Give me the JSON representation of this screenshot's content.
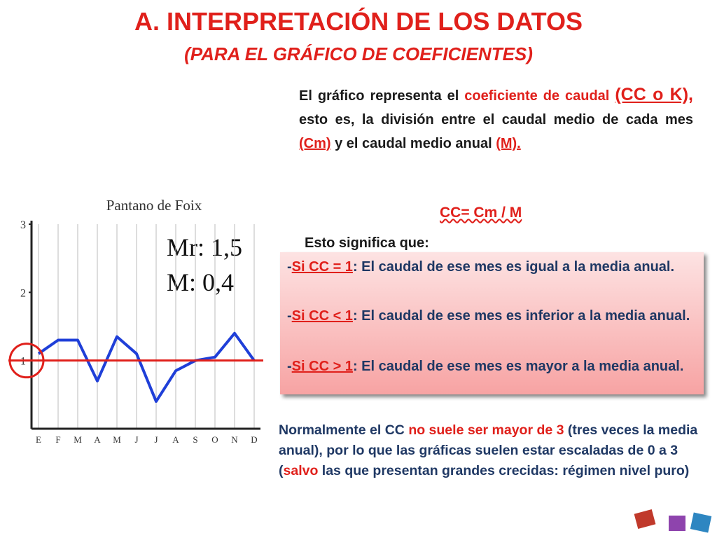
{
  "title": "A. INTERPRETACIÓN DE LOS DATOS",
  "subtitle": "(PARA EL GRÁFICO DE COEFICIENTES)",
  "intro": [
    {
      "text": "El gráfico representa el ",
      "color": "#1a1a1a"
    },
    {
      "text": "coeficiente de caudal ",
      "color": "#e0201b"
    },
    {
      "text": "(CC o K), ",
      "color": "#e0201b",
      "underline": true,
      "size": 25
    },
    {
      "text": "esto es, la división entre el caudal medio de cada mes ",
      "color": "#1a1a1a"
    },
    {
      "text": "(Cm)",
      "color": "#e0201b",
      "underline": true
    },
    {
      "text": " y el caudal medio anual ",
      "color": "#1a1a1a"
    },
    {
      "text": "(M).",
      "color": "#e0201b",
      "underline": true
    }
  ],
  "formula": "CC= Cm / M",
  "lead": "Esto significa que:",
  "items": [
    [
      {
        "text": "-",
        "color": "#1f3864"
      },
      {
        "text": "Si CC = 1",
        "color": "#e0201b",
        "underline": true
      },
      {
        "text": ": El caudal de ese mes es igual a la media anual.",
        "color": "#1f3864"
      }
    ],
    [
      {
        "text": "-",
        "color": "#1f3864"
      },
      {
        "text": "Si CC < 1",
        "color": "#e0201b",
        "underline": true
      },
      {
        "text": ": El caudal de ese mes es inferior a la media anual.",
        "color": "#1f3864"
      }
    ],
    [
      {
        "text": "-",
        "color": "#1f3864"
      },
      {
        "text": "Si CC > 1",
        "color": "#e0201b",
        "underline": true
      },
      {
        "text": ": El caudal de ese mes es mayor a la media anual.",
        "color": "#1f3864"
      }
    ]
  ],
  "note": [
    {
      "text": "Normalmente el CC ",
      "color": "#1f3864"
    },
    {
      "text": "no suele ser mayor de 3",
      "color": "#e0201b"
    },
    {
      "text": " (tres veces la media anual), por lo que las gráficas suelen estar escaladas de 0 a 3 (",
      "color": "#1f3864"
    },
    {
      "text": "salvo",
      "color": "#e0201b"
    },
    {
      "text": " las que presentan grandes crecidas: régimen nivel puro)",
      "color": "#1f3864"
    }
  ],
  "chart_data": {
    "type": "line",
    "title": "Pantano de Foix",
    "annotations": [
      "Mr: 1,5",
      "M: 0,4"
    ],
    "categories": [
      "E",
      "F",
      "M",
      "A",
      "M",
      "J",
      "J",
      "A",
      "S",
      "O",
      "N",
      "D"
    ],
    "series": [
      {
        "name": "CC",
        "color": "#1f3fd8",
        "values": [
          1.1,
          1.3,
          1.3,
          0.7,
          1.35,
          1.1,
          0.4,
          0.85,
          1.0,
          1.05,
          1.4,
          1.0
        ]
      }
    ],
    "ylim": [
      0,
      3
    ],
    "yticks": [
      1,
      2,
      3
    ],
    "reference_line": 1,
    "grid": true
  }
}
